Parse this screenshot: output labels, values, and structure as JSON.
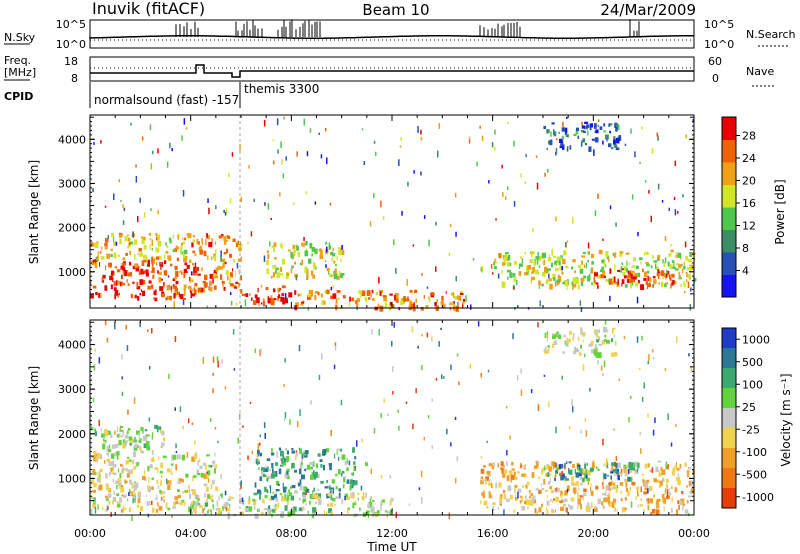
{
  "header": {
    "station": "Inuvik (fitACF)",
    "beam": "Beam 10",
    "date": "24/Mar/2009"
  },
  "panels": {
    "nsky": {
      "label": "N.Sky",
      "right_label": "N.Search",
      "tick_top": "10^5",
      "tick_bottom": "10^0"
    },
    "freq": {
      "label_line1": "Freq.",
      "label_line2": "[MHz]",
      "tick_top": "18",
      "tick_bottom": "8",
      "right_tick_top": "60",
      "right_tick_bottom": "0",
      "right_label": "Nave"
    },
    "cpid": {
      "label": "CPID",
      "mode1": "normalsound (fast) -157",
      "mode2": "themis 3300"
    }
  },
  "range_axis": {
    "label": "Slant Range [km]",
    "ticks": [
      "1000",
      "2000",
      "3000",
      "4000"
    ]
  },
  "time_axis": {
    "label": "Time UT",
    "ticks": [
      "00:00",
      "04:00",
      "08:00",
      "12:00",
      "16:00",
      "20:00",
      "00:00"
    ]
  },
  "colorbars": {
    "power": {
      "label": "Power [dB]",
      "ticks": [
        "4",
        "8",
        "12",
        "16",
        "20",
        "24",
        "28"
      ],
      "colors": [
        "#1414f0",
        "#2850b4",
        "#3c8c64",
        "#50c850",
        "#d2e628",
        "#f0a014",
        "#f06400",
        "#e60000"
      ]
    },
    "velocity": {
      "label": "Velocity [m s⁻¹]",
      "ticks": [
        "1000",
        "500",
        "100",
        "25",
        "-25",
        "-100",
        "-500",
        "-1000"
      ],
      "colors": [
        "#1e3cc8",
        "#2d7896",
        "#3caa6e",
        "#64d23c",
        "#c8c8c8",
        "#f0d250",
        "#f0a028",
        "#f07814",
        "#e63c0a"
      ]
    }
  },
  "chart_data": [
    {
      "type": "heatmap",
      "title": "Power",
      "xlabel": "Time UT",
      "ylabel": "Slant Range [km]",
      "xlim": [
        "00:00",
        "24:00"
      ],
      "ylim": [
        180,
        4550
      ],
      "colorbar_label": "Power [dB]",
      "colorbar_range": [
        0,
        32
      ],
      "regions": [
        {
          "t": [
            0.0,
            4.2
          ],
          "r": [
            400,
            1300
          ],
          "value": 28
        },
        {
          "t": [
            0.0,
            4.0
          ],
          "r": [
            1300,
            1900
          ],
          "value": 20
        },
        {
          "t": [
            4.0,
            6.0
          ],
          "r": [
            600,
            1900
          ],
          "value": 24
        },
        {
          "t": [
            6.0,
            8.0
          ],
          "r": [
            300,
            700
          ],
          "value": 28
        },
        {
          "t": [
            7.0,
            10.0
          ],
          "r": [
            900,
            1700
          ],
          "value": 18
        },
        {
          "t": [
            8.0,
            15.0
          ],
          "r": [
            200,
            600
          ],
          "value": 24
        },
        {
          "t": [
            16.0,
            24.0
          ],
          "r": [
            700,
            1500
          ],
          "value": 18
        },
        {
          "t": [
            20.0,
            23.5
          ],
          "r": [
            700,
            1100
          ],
          "value": 28
        },
        {
          "t": [
            18.0,
            21.0
          ],
          "r": [
            3800,
            4400
          ],
          "value": 8
        }
      ]
    },
    {
      "type": "heatmap",
      "title": "Velocity",
      "xlabel": "Time UT",
      "ylabel": "Slant Range [km]",
      "xlim": [
        "00:00",
        "24:00"
      ],
      "ylim": [
        180,
        4550
      ],
      "colorbar_label": "Velocity [m s⁻¹]",
      "colorbar_range": [
        -1000,
        1000
      ],
      "regions": [
        {
          "t": [
            0.0,
            5.0
          ],
          "r": [
            300,
            1600
          ],
          "value": -100
        },
        {
          "t": [
            0.0,
            3.0
          ],
          "r": [
            1600,
            2200
          ],
          "value": 100
        },
        {
          "t": [
            6.5,
            10.5
          ],
          "r": [
            600,
            1700
          ],
          "value": 400
        },
        {
          "t": [
            4.0,
            12.0
          ],
          "r": [
            200,
            700
          ],
          "value": 25
        },
        {
          "t": [
            15.5,
            24.0
          ],
          "r": [
            300,
            1400
          ],
          "value": -300
        },
        {
          "t": [
            18.0,
            22.0
          ],
          "r": [
            1000,
            1400
          ],
          "value": 600
        },
        {
          "t": [
            18.0,
            21.0
          ],
          "r": [
            3800,
            4400
          ],
          "value": 0
        }
      ]
    }
  ]
}
